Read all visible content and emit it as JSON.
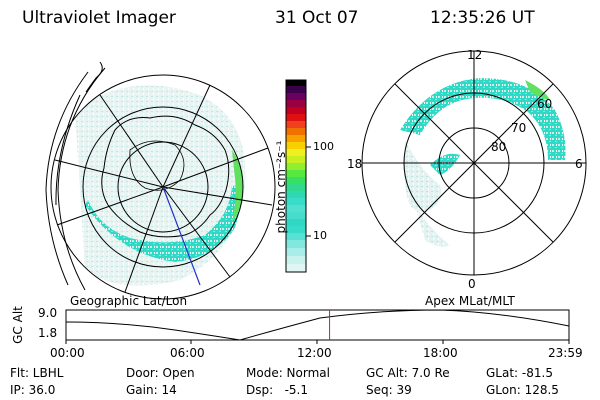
{
  "header": {
    "instrument": "Ultraviolet Imager",
    "date": "31 Oct 07",
    "time": "12:35:26 UT"
  },
  "colorbar": {
    "unit_label": "photon cm⁻²s⁻¹",
    "ticks": [
      "100",
      "10"
    ]
  },
  "geo_map": {
    "caption": "Geographic Lat/Lon"
  },
  "polar_map": {
    "caption": "Apex MLat/MLT",
    "mlt_labels": {
      "top": "12",
      "left": "18",
      "right": "6",
      "bottom": "0"
    },
    "lat_labels": [
      "60",
      "70",
      "80"
    ]
  },
  "altitude_plot": {
    "ylabel": "GC Alt",
    "yticks": [
      "9.0",
      "1.8"
    ],
    "xticks": [
      "00:00",
      "06:00",
      "12:00",
      "18:00",
      "23:59"
    ],
    "current_time_fraction": 0.524
  },
  "status": {
    "filter": "Flt: LBHL",
    "ip": "IP: 36.0",
    "door": "Door: Open",
    "gain": "Gain: 14",
    "mode": "Mode: Normal",
    "dsp": "Dsp:   -5.1",
    "gc_alt": "GC Alt: 7.0 Re",
    "seq": "Seq: 39",
    "glat": "GLat: -81.5",
    "glon": "GLon: 128.5"
  },
  "colors": {
    "aurora": "#33dcc8",
    "aurora_light": "#c8ece8",
    "marker": "#cc2222"
  }
}
